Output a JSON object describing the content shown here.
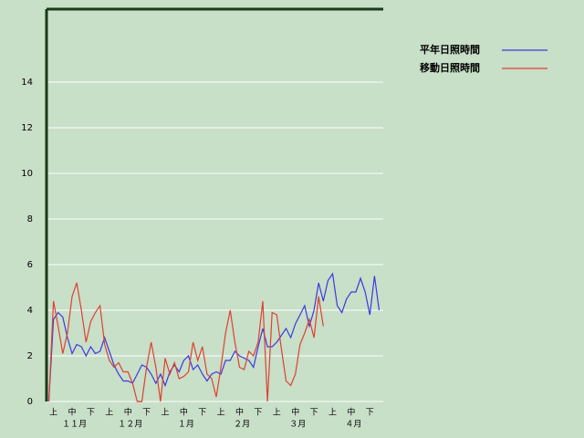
{
  "chart_data": {
    "type": "line",
    "categories": [
      null,
      "上",
      null,
      null,
      null,
      "中",
      null,
      null,
      null,
      "下",
      null,
      null,
      null,
      "上",
      null,
      null,
      null,
      "中",
      null,
      null,
      null,
      "下",
      null,
      null,
      null,
      "上",
      null,
      null,
      null,
      "中",
      null,
      null,
      null,
      "下",
      null,
      null,
      null,
      "上",
      null,
      null,
      null,
      "中",
      null,
      null,
      null,
      "下",
      null,
      null,
      null,
      "上",
      null,
      null,
      null,
      "中",
      null,
      null,
      null,
      "下",
      null,
      null,
      null,
      "上",
      null,
      null,
      null,
      "中",
      null,
      null,
      null,
      "下",
      null,
      null
    ],
    "months": [
      "１１月",
      "１２月",
      "１月",
      "２月",
      "３月",
      "４月"
    ],
    "series": [
      {
        "name": "平年日照時間",
        "color": "#3a3ae0",
        "values": [
          0,
          3.6,
          3.9,
          3.7,
          2.8,
          2.1,
          2.5,
          2.4,
          2.0,
          2.4,
          2.1,
          2.2,
          2.8,
          2.2,
          1.6,
          1.2,
          0.9,
          0.9,
          0.8,
          1.2,
          1.6,
          1.5,
          1.2,
          0.8,
          1.2,
          0.7,
          1.3,
          1.6,
          1.3,
          1.8,
          2.0,
          1.4,
          1.6,
          1.2,
          0.9,
          1.2,
          1.3,
          1.2,
          1.8,
          1.8,
          2.2,
          2.0,
          1.9,
          1.8,
          1.5,
          2.4,
          3.2,
          2.4,
          2.4,
          2.6,
          2.9,
          3.2,
          2.8,
          3.4,
          3.8,
          4.2,
          3.3,
          4.0,
          5.2,
          4.4,
          5.3,
          5.6,
          4.2,
          3.9,
          4.5,
          4.8,
          4.8,
          5.4,
          4.8,
          3.8,
          5.5,
          4.0
        ]
      },
      {
        "name": "移動日照時間",
        "color": "#e04030",
        "values": [
          0,
          4.4,
          3.3,
          2.1,
          3.0,
          4.6,
          5.2,
          4.0,
          2.6,
          3.5,
          3.9,
          4.2,
          2.5,
          1.8,
          1.5,
          1.7,
          1.3,
          1.3,
          0.8,
          0,
          0,
          1.5,
          2.6,
          1.5,
          0,
          1.9,
          1.2,
          1.7,
          1.0,
          1.1,
          1.3,
          2.6,
          1.8,
          2.4,
          1.2,
          1.0,
          0.2,
          1.5,
          3.0,
          4.0,
          2.6,
          1.5,
          1.4,
          2.2,
          2.0,
          2.6,
          4.4,
          0,
          3.9,
          3.8,
          2.3,
          0.9,
          0.7,
          1.2,
          2.5,
          3.0,
          3.6,
          2.8,
          4.6,
          3.3,
          null,
          null,
          null,
          null,
          null,
          null,
          null,
          null,
          null,
          null,
          null,
          null
        ]
      }
    ],
    "ylim": [
      0,
      17.2
    ],
    "yticks": [
      0,
      2,
      4,
      6,
      8,
      10,
      12,
      14
    ],
    "grid": true
  }
}
